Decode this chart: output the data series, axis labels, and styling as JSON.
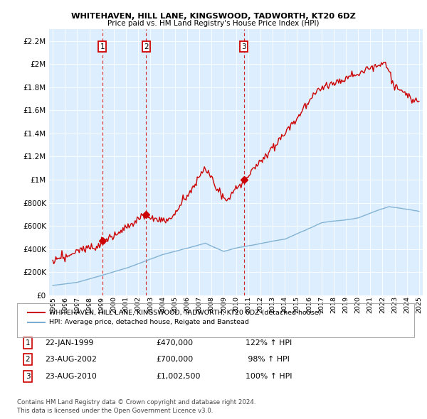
{
  "title1": "WHITEHAVEN, HILL LANE, KINGSWOOD, TADWORTH, KT20 6DZ",
  "title2": "Price paid vs. HM Land Registry's House Price Index (HPI)",
  "legend_line1": "WHITEHAVEN, HILL LANE, KINGSWOOD, TADWORTH, KT20 6DZ (detached house)",
  "legend_line2": "HPI: Average price, detached house, Reigate and Banstead",
  "footnote": "Contains HM Land Registry data © Crown copyright and database right 2024.\nThis data is licensed under the Open Government Licence v3.0.",
  "sales": [
    {
      "num": 1,
      "date": "22-JAN-1999",
      "price": 470000,
      "hpi_pct": "122% ↑ HPI",
      "x": 1999.06
    },
    {
      "num": 2,
      "date": "23-AUG-2002",
      "price": 700000,
      "hpi_pct": " 98% ↑ HPI",
      "x": 2002.65
    },
    {
      "num": 3,
      "date": "23-AUG-2010",
      "price": 1002500,
      "hpi_pct": "100% ↑ HPI",
      "x": 2010.65
    }
  ],
  "price_color": "#cc0000",
  "hpi_color": "#7aadcf",
  "vline_color": "#cc0000",
  "chart_bg": "#ddeeff",
  "ylim": [
    0,
    2300000
  ],
  "yticks": [
    0,
    200000,
    400000,
    600000,
    800000,
    1000000,
    1200000,
    1400000,
    1600000,
    1800000,
    2000000,
    2200000
  ],
  "xlim_start": 1994.7,
  "xlim_end": 2025.3,
  "xticks": [
    1995,
    1996,
    1997,
    1998,
    1999,
    2000,
    2001,
    2002,
    2003,
    2004,
    2005,
    2006,
    2007,
    2008,
    2009,
    2010,
    2011,
    2012,
    2013,
    2014,
    2015,
    2016,
    2017,
    2018,
    2019,
    2020,
    2021,
    2022,
    2023,
    2024,
    2025
  ]
}
